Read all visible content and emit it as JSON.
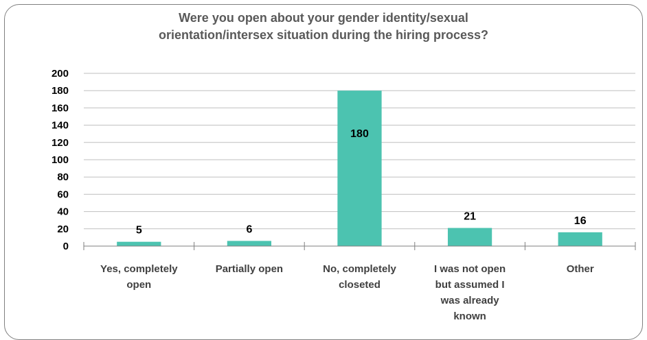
{
  "chart_data": {
    "type": "bar",
    "title_lines": [
      "Were you open about your gender identity/sexual",
      "orientation/intersex situation during the hiring process?"
    ],
    "categories": [
      [
        "Yes, completely",
        "open"
      ],
      [
        "Partially open"
      ],
      [
        "No, completely",
        "closeted"
      ],
      [
        "I was not open",
        "but assumed I",
        "was already",
        "known"
      ],
      [
        "Other"
      ]
    ],
    "values": [
      5,
      6,
      180,
      21,
      16
    ],
    "ylim": [
      0,
      200
    ],
    "yticks": [
      0,
      20,
      40,
      60,
      80,
      100,
      120,
      140,
      160,
      180,
      200
    ],
    "grid": true,
    "legend": "none",
    "colors": {
      "bar": "#4cc3b0",
      "grid": "#bfbfbf",
      "axis": "#7f7f7f"
    }
  }
}
